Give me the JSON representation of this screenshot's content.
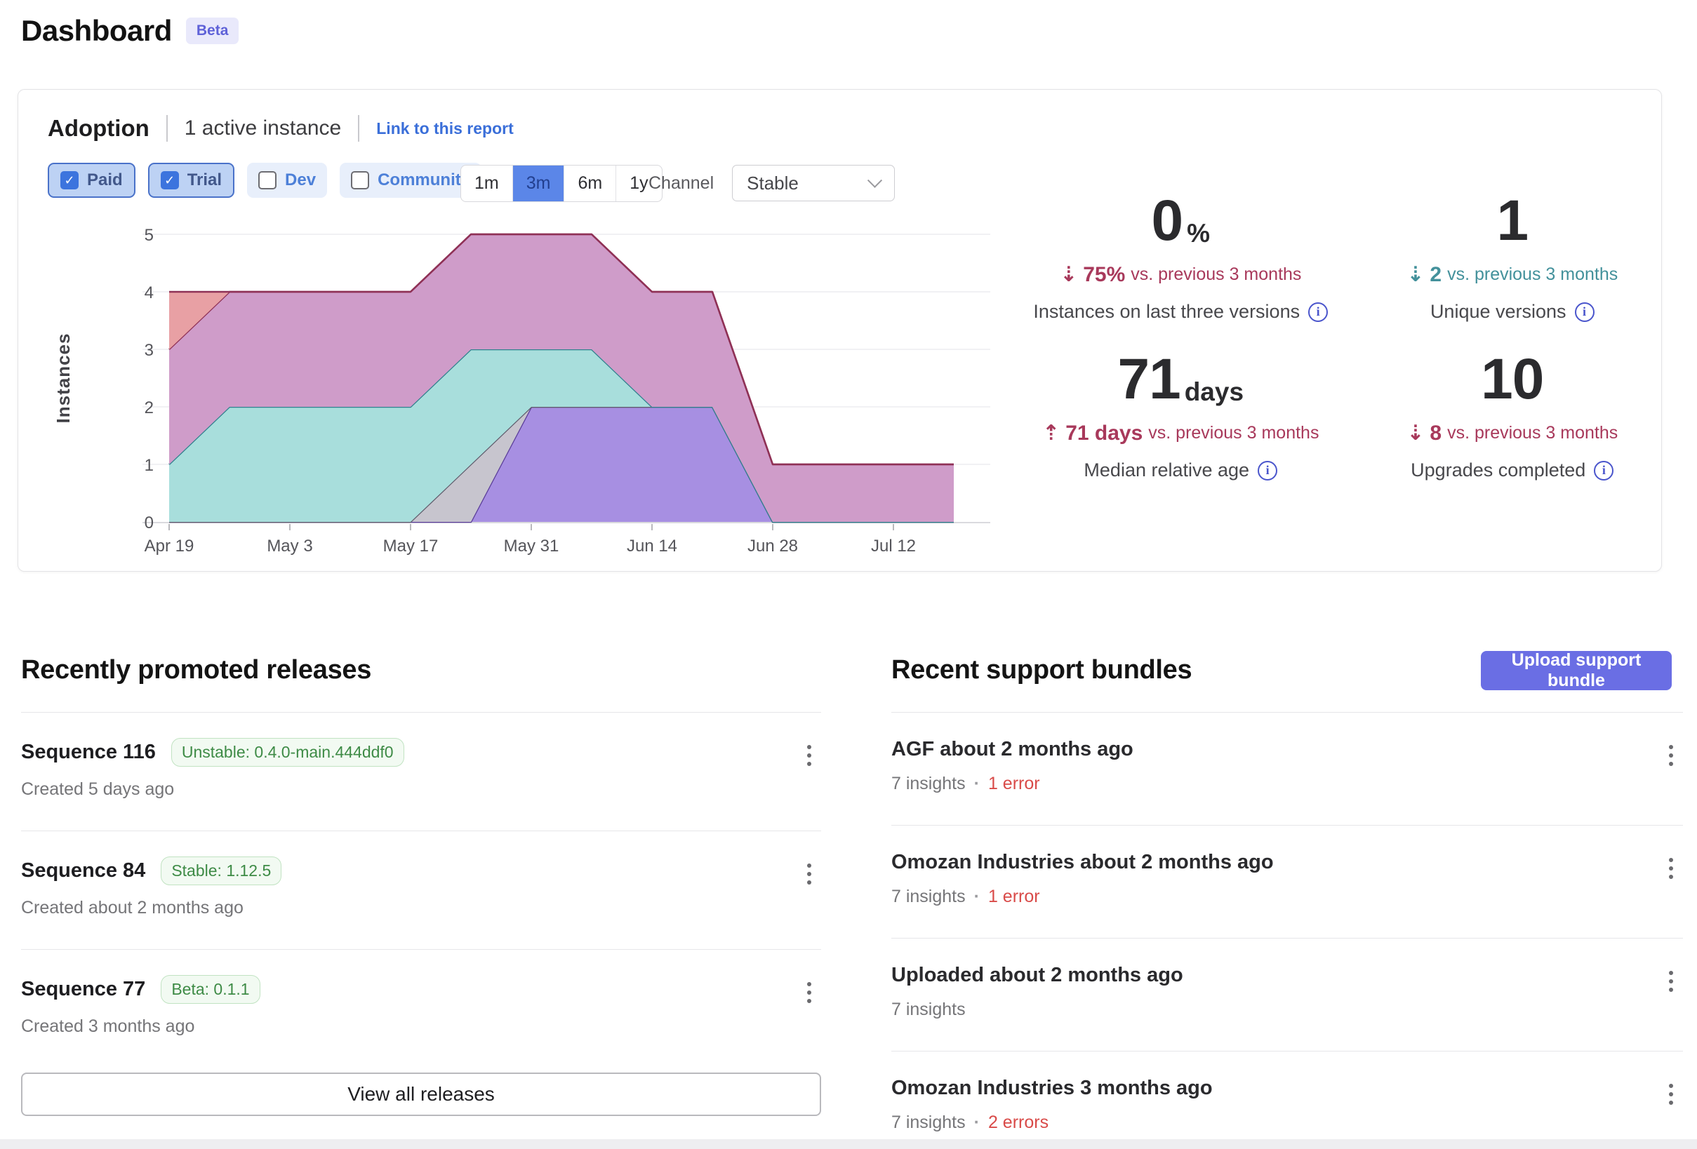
{
  "page": {
    "title": "Dashboard",
    "beta_badge": "Beta"
  },
  "icons": {
    "check": "✓",
    "arrow-up-dashed": "⇡",
    "arrow-down-dashed": "⇣",
    "info": "i",
    "separator-dot": "·"
  },
  "adoption": {
    "title": "Adoption",
    "active_instances": "1 active instance",
    "report_link": "Link to this report",
    "filters": [
      {
        "label": "Paid",
        "checked": true
      },
      {
        "label": "Trial",
        "checked": true
      },
      {
        "label": "Dev",
        "checked": false
      },
      {
        "label": "Community",
        "checked": false
      }
    ],
    "time_ranges": [
      {
        "label": "1m",
        "selected": false
      },
      {
        "label": "3m",
        "selected": true
      },
      {
        "label": "6m",
        "selected": false
      },
      {
        "label": "1y",
        "selected": false
      }
    ],
    "channel": {
      "label": "Channel",
      "selected": "Stable"
    },
    "stats": [
      {
        "value": "0",
        "unit": "%",
        "change_icon": "arrow-down-dashed",
        "change_value": "75%",
        "change_suffix": "vs. previous 3 months",
        "change_color": "#a8395b",
        "label": "Instances on last three versions"
      },
      {
        "value": "1",
        "unit": "",
        "change_icon": "arrow-down-dashed",
        "change_value": "2",
        "change_suffix": "vs. previous 3 months",
        "change_color": "#43919b",
        "label": "Unique versions"
      },
      {
        "value": "71",
        "unit": "days",
        "change_icon": "arrow-up-dashed",
        "change_value": "71 days",
        "change_suffix": "vs. previous 3 months",
        "change_color": "#a8395b",
        "label": "Median relative age"
      },
      {
        "value": "10",
        "unit": "",
        "change_icon": "arrow-down-dashed",
        "change_value": "8",
        "change_suffix": "vs. previous 3 months",
        "change_color": "#a8395b",
        "label": "Upgrades completed"
      }
    ],
    "chart_data": {
      "type": "area",
      "stacked": true,
      "title": "",
      "xlabel": "",
      "ylabel": "Instances",
      "ylim": [
        0,
        5
      ],
      "yticks": [
        0,
        1,
        2,
        3,
        4,
        5
      ],
      "x": [
        "Apr 19",
        "Apr 26",
        "May 3",
        "May 10",
        "May 17",
        "May 24",
        "May 31",
        "Jun 7",
        "Jun 14",
        "Jun 21",
        "Jun 28",
        "Jul 5",
        "Jul 12",
        "Jul 19"
      ],
      "xtick_labels": [
        "Apr 19",
        "May 3",
        "May 17",
        "May 31",
        "Jun 14",
        "Jun 28",
        "Jul 12"
      ],
      "grid": true,
      "legend": "none",
      "series": [
        {
          "name": "version-purple",
          "fill": "#a78fe2",
          "stroke": "#5a3d99",
          "values": [
            0,
            0,
            0,
            0,
            0,
            0,
            2,
            2,
            2,
            2,
            0,
            0,
            0,
            0
          ]
        },
        {
          "name": "version-gray",
          "fill": "#c7c5ce",
          "stroke": "#605d6d",
          "values": [
            0,
            0,
            0,
            0,
            0,
            1,
            0,
            0,
            0,
            0,
            0,
            0,
            0,
            0
          ]
        },
        {
          "name": "version-teal",
          "fill": "#a8dedc",
          "stroke": "#2f808d",
          "values": [
            1,
            2,
            2,
            2,
            2,
            2,
            1,
            1,
            0,
            0,
            0,
            0,
            0,
            0
          ]
        },
        {
          "name": "version-magenta",
          "fill": "#cf9cc9",
          "stroke": "#8f3156",
          "values": [
            2,
            2,
            2,
            2,
            2,
            2,
            2,
            2,
            2,
            2,
            1,
            1,
            1,
            1
          ]
        },
        {
          "name": "version-salmon",
          "fill": "#e8a0a4",
          "stroke": "#8f3156",
          "values": [
            1,
            0,
            0,
            0,
            0,
            0,
            0,
            0,
            0,
            0,
            0,
            0,
            0,
            0
          ]
        }
      ]
    }
  },
  "releases": {
    "title": "Recently promoted releases",
    "view_all_label": "View all releases",
    "items": [
      {
        "name": "Sequence 116",
        "badge": "Unstable: 0.4.0-main.444ddf0",
        "created": "Created 5 days ago"
      },
      {
        "name": "Sequence 84",
        "badge": "Stable: 1.12.5",
        "created": "Created about 2 months ago"
      },
      {
        "name": "Sequence 77",
        "badge": "Beta: 0.1.1",
        "created": "Created 3 months ago"
      }
    ]
  },
  "support_bundles": {
    "title": "Recent support bundles",
    "upload_label": "Upload support bundle",
    "items": [
      {
        "name": "AGF about 2 months ago",
        "insights": "7 insights",
        "errors": "1 error"
      },
      {
        "name": "Omozan Industries about 2 months ago",
        "insights": "7 insights",
        "errors": "1 error"
      },
      {
        "name": "Uploaded about 2 months ago",
        "insights": "7 insights",
        "errors": null
      },
      {
        "name": "Omozan Industries 3 months ago",
        "insights": "7 insights",
        "errors": "2 errors"
      }
    ]
  }
}
